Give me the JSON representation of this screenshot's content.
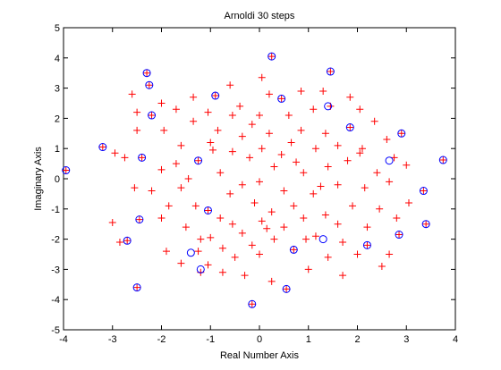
{
  "chart_data": {
    "type": "scatter",
    "title": "Arnoldi 30 steps",
    "xlabel": "Real Number Axis",
    "ylabel": "Imaginary Axis",
    "xlim": [
      -4,
      4
    ],
    "ylim": [
      -5,
      5
    ],
    "xticks": [
      "-4",
      "-3",
      "-2",
      "-1",
      "0",
      "1",
      "2",
      "3",
      "4"
    ],
    "yticks": [
      "5",
      "4",
      "3",
      "2",
      "1",
      "0",
      "-1",
      "-2",
      "-3",
      "-4",
      "-5"
    ],
    "grid": false,
    "series": [
      {
        "marker": "plus",
        "color": "#ff0000",
        "points": [
          [
            -3.95,
            0.28
          ],
          [
            -3.2,
            1.05
          ],
          [
            -2.95,
            0.85
          ],
          [
            -3.0,
            -1.45
          ],
          [
            -2.7,
            -2.05
          ],
          [
            -2.85,
            -2.1
          ],
          [
            -2.6,
            2.8
          ],
          [
            -2.3,
            3.5
          ],
          [
            -2.25,
            3.1
          ],
          [
            -2.5,
            2.2
          ],
          [
            -2.2,
            2.1
          ],
          [
            -2.5,
            1.6
          ],
          [
            -2.4,
            0.7
          ],
          [
            -2.55,
            -0.3
          ],
          [
            -2.45,
            -1.35
          ],
          [
            -2.5,
            -3.6
          ],
          [
            -2.0,
            2.5
          ],
          [
            -1.95,
            1.6
          ],
          [
            -2.0,
            0.3
          ],
          [
            -2.2,
            -0.4
          ],
          [
            -2.0,
            -1.3
          ],
          [
            -1.9,
            -2.4
          ],
          [
            -1.7,
            2.3
          ],
          [
            -1.6,
            1.1
          ],
          [
            -1.7,
            0.5
          ],
          [
            -1.6,
            -0.3
          ],
          [
            -1.5,
            -1.6
          ],
          [
            -1.6,
            -2.8
          ],
          [
            -1.35,
            2.7
          ],
          [
            -1.35,
            1.9
          ],
          [
            -1.25,
            0.6
          ],
          [
            -1.3,
            -0.9
          ],
          [
            -1.2,
            -2.0
          ],
          [
            -1.25,
            -2.4
          ],
          [
            -1.2,
            -3.1
          ],
          [
            -1.05,
            2.2
          ],
          [
            -1.0,
            1.2
          ],
          [
            -1.05,
            -1.05
          ],
          [
            -1.0,
            -1.95
          ],
          [
            -1.05,
            -2.85
          ],
          [
            -0.9,
            2.75
          ],
          [
            -0.85,
            1.6
          ],
          [
            -0.8,
            0.2
          ],
          [
            -0.8,
            -1.3
          ],
          [
            -0.75,
            -2.3
          ],
          [
            -0.75,
            -3.1
          ],
          [
            -0.6,
            3.1
          ],
          [
            -0.55,
            2.1
          ],
          [
            -0.55,
            0.9
          ],
          [
            -0.6,
            -0.5
          ],
          [
            -0.55,
            -1.5
          ],
          [
            -0.5,
            -2.6
          ],
          [
            -0.4,
            2.4
          ],
          [
            -0.35,
            1.4
          ],
          [
            -0.35,
            -0.2
          ],
          [
            -0.35,
            -1.8
          ],
          [
            -0.3,
            -3.2
          ],
          [
            -0.15,
            -4.15
          ],
          [
            -0.15,
            1.8
          ],
          [
            -0.2,
            0.7
          ],
          [
            -0.1,
            -0.8
          ],
          [
            -0.15,
            -2.2
          ],
          [
            0.05,
            3.35
          ],
          [
            0.0,
            2.1
          ],
          [
            0.05,
            1.0
          ],
          [
            0.0,
            -0.1
          ],
          [
            0.05,
            -1.4
          ],
          [
            0.0,
            -2.5
          ],
          [
            0.25,
            4.05
          ],
          [
            0.2,
            2.8
          ],
          [
            0.2,
            1.5
          ],
          [
            0.3,
            0.4
          ],
          [
            0.25,
            -1.1
          ],
          [
            0.3,
            -2.0
          ],
          [
            0.25,
            -3.4
          ],
          [
            0.45,
            2.65
          ],
          [
            0.45,
            0.8
          ],
          [
            0.5,
            -0.4
          ],
          [
            0.5,
            -1.6
          ],
          [
            0.55,
            -3.65
          ],
          [
            0.6,
            2.1
          ],
          [
            0.65,
            1.2
          ],
          [
            0.7,
            -0.9
          ],
          [
            0.7,
            -2.35
          ],
          [
            0.85,
            2.9
          ],
          [
            0.85,
            1.6
          ],
          [
            0.9,
            0.2
          ],
          [
            0.9,
            -1.3
          ],
          [
            0.95,
            -2.0
          ],
          [
            1.0,
            -3.0
          ],
          [
            1.1,
            2.3
          ],
          [
            1.15,
            1.0
          ],
          [
            1.1,
            -0.5
          ],
          [
            1.15,
            -1.9
          ],
          [
            1.3,
            2.9
          ],
          [
            1.35,
            1.5
          ],
          [
            1.4,
            0.4
          ],
          [
            1.35,
            -1.2
          ],
          [
            1.4,
            -2.6
          ],
          [
            1.45,
            3.55
          ],
          [
            1.45,
            2.4
          ],
          [
            1.6,
            1.1
          ],
          [
            1.6,
            -0.2
          ],
          [
            1.6,
            -1.5
          ],
          [
            1.7,
            -2.1
          ],
          [
            1.7,
            -3.2
          ],
          [
            1.85,
            2.7
          ],
          [
            1.85,
            1.7
          ],
          [
            1.8,
            0.6
          ],
          [
            1.9,
            -0.9
          ],
          [
            2.0,
            -2.5
          ],
          [
            2.05,
            2.3
          ],
          [
            2.1,
            1.0
          ],
          [
            2.15,
            -0.3
          ],
          [
            2.2,
            -1.6
          ],
          [
            2.2,
            -2.2
          ],
          [
            2.35,
            1.9
          ],
          [
            2.4,
            0.2
          ],
          [
            2.45,
            -1.0
          ],
          [
            2.5,
            -2.9
          ],
          [
            2.6,
            1.3
          ],
          [
            2.65,
            -0.1
          ],
          [
            2.65,
            -2.5
          ],
          [
            2.75,
            0.7
          ],
          [
            2.8,
            -1.3
          ],
          [
            2.9,
            1.5
          ],
          [
            2.85,
            -1.85
          ],
          [
            3.0,
            0.45
          ],
          [
            3.05,
            -0.8
          ],
          [
            3.35,
            -0.4
          ],
          [
            3.4,
            -1.5
          ],
          [
            3.75,
            0.62
          ],
          [
            -2.75,
            0.7
          ],
          [
            -1.85,
            -0.9
          ],
          [
            -1.45,
            0.0
          ],
          [
            -0.95,
            0.95
          ],
          [
            0.15,
            -1.65
          ],
          [
            0.75,
            0.55
          ],
          [
            1.25,
            -0.25
          ],
          [
            2.05,
            0.85
          ]
        ]
      },
      {
        "marker": "circle",
        "color": "#0000ff",
        "points": [
          [
            -3.95,
            0.28
          ],
          [
            -3.2,
            1.05
          ],
          [
            -2.7,
            -2.05
          ],
          [
            -2.3,
            3.5
          ],
          [
            -2.25,
            3.1
          ],
          [
            -2.2,
            2.1
          ],
          [
            -2.4,
            0.7
          ],
          [
            -2.45,
            -1.35
          ],
          [
            -2.5,
            -3.6
          ],
          [
            -1.4,
            -2.45
          ],
          [
            -1.2,
            -3.0
          ],
          [
            -1.25,
            0.6
          ],
          [
            -1.05,
            -1.05
          ],
          [
            -0.9,
            2.75
          ],
          [
            -0.15,
            -4.15
          ],
          [
            0.25,
            4.05
          ],
          [
            0.45,
            2.65
          ],
          [
            0.55,
            -3.65
          ],
          [
            0.7,
            -2.35
          ],
          [
            1.3,
            -2.0
          ],
          [
            1.4,
            2.4
          ],
          [
            1.45,
            3.55
          ],
          [
            1.85,
            1.7
          ],
          [
            2.2,
            -2.2
          ],
          [
            2.65,
            0.6
          ],
          [
            2.85,
            -1.85
          ],
          [
            2.9,
            1.5
          ],
          [
            3.35,
            -0.4
          ],
          [
            3.4,
            -1.5
          ],
          [
            3.75,
            0.62
          ]
        ]
      }
    ]
  }
}
